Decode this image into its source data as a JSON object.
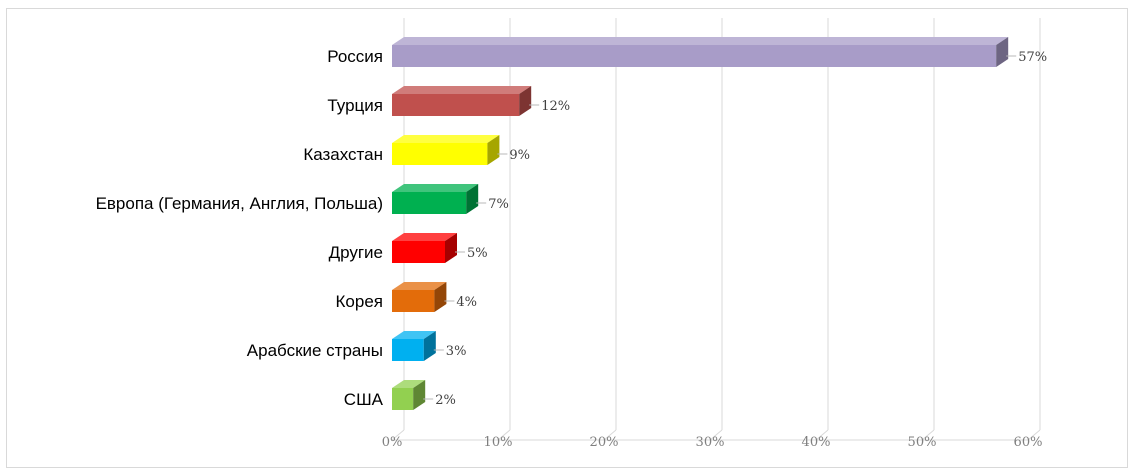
{
  "chart_data": {
    "type": "bar",
    "orientation": "horizontal",
    "style": "3d",
    "categories": [
      "Россия",
      "Турция",
      "Казахстан",
      "Европа (Германия, Англия, Польша)",
      "Другие",
      "Корея",
      "Арабские страны",
      "США"
    ],
    "values": [
      57,
      12,
      9,
      7,
      5,
      4,
      3,
      2
    ],
    "data_labels": [
      "57%",
      "12%",
      "9%",
      "7%",
      "5%",
      "4%",
      "3%",
      "2%"
    ],
    "bar_colors": [
      "#a89cc8",
      "#c0504d",
      "#ffff00",
      "#00b050",
      "#ff0000",
      "#e36c0a",
      "#00b0f0",
      "#92d050"
    ],
    "xlim": [
      0,
      60
    ],
    "xticks": [
      0,
      10,
      20,
      30,
      40,
      50,
      60
    ],
    "xtick_labels": [
      "0%",
      "10%",
      "20%",
      "30%",
      "40%",
      "50%",
      "60%"
    ],
    "grid": true,
    "legend": "none",
    "title": "",
    "xlabel": "",
    "ylabel": ""
  }
}
